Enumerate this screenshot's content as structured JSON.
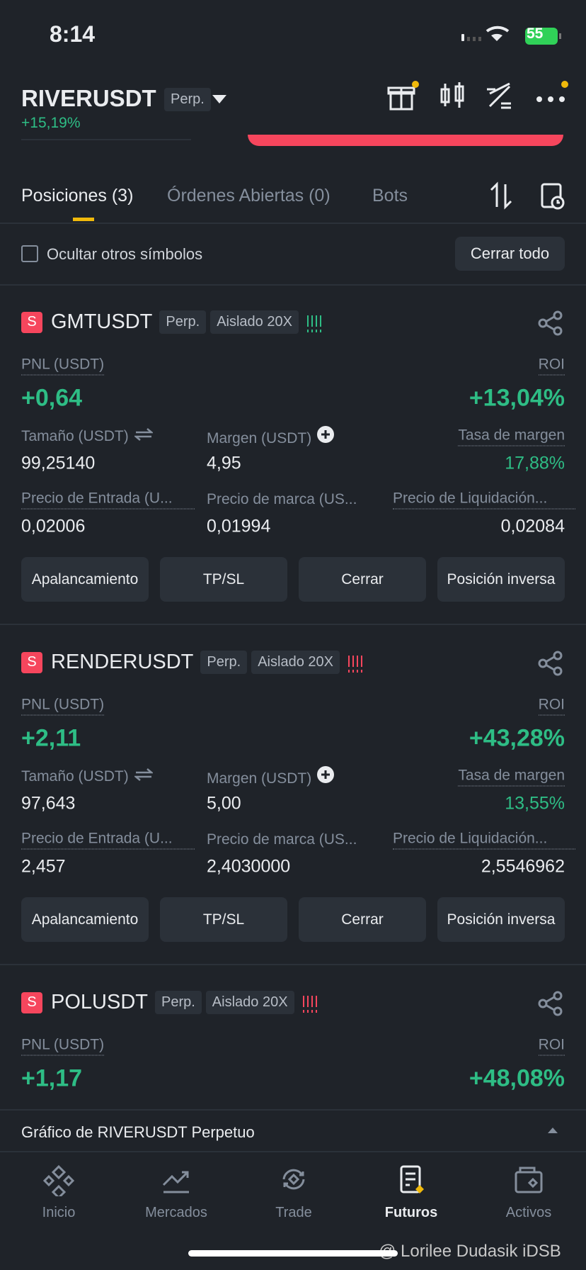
{
  "status": {
    "time": "8:14",
    "battery": "55"
  },
  "header": {
    "symbol": "RIVERUSDT",
    "badge": "Perp.",
    "change": "+15,19%"
  },
  "tabs": {
    "items": [
      "Posiciones (3)",
      "Órdenes Abiertas (0)",
      "Bots"
    ],
    "active": 0
  },
  "filter": {
    "checkbox": "Ocultar otros símbolos",
    "button": "Cerrar todo"
  },
  "position_labels": {
    "pnl": "PNL (USDT)",
    "roi": "ROI",
    "size": "Tamaño (USDT)",
    "margin": "Margen (USDT)",
    "margin_rate": "Tasa de margen",
    "entry": "Precio de Entrada (U...",
    "mark": "Precio de marca (US...",
    "liq": "Precio de Liquidación...",
    "buttons": [
      "Apalancamiento",
      "TP/SL",
      "Cerrar",
      "Posición inversa"
    ]
  },
  "positions": [
    {
      "side": "S",
      "symbol": "GMTUSDT",
      "type": "Perp.",
      "mode": "Aislado 20X",
      "adl_color": "#2ebd85",
      "pnl": "+0,64",
      "roi": "+13,04%",
      "size": "99,25140",
      "margin": "4,95",
      "margin_rate": "17,88%",
      "entry": "0,02006",
      "mark": "0,01994",
      "liq": "0,02084"
    },
    {
      "side": "S",
      "symbol": "RENDERUSDT",
      "type": "Perp.",
      "mode": "Aislado 20X",
      "adl_color": "#f6465d",
      "pnl": "+2,11",
      "roi": "+43,28%",
      "size": "97,643",
      "margin": "5,00",
      "margin_rate": "13,55%",
      "entry": "2,457",
      "mark": "2,4030000",
      "liq": "2,5546962"
    },
    {
      "side": "S",
      "symbol": "POLUSDT",
      "type": "Perp.",
      "mode": "Aislado 20X",
      "adl_color": "#f6465d",
      "pnl": "+1,17",
      "roi": "+48,08%"
    }
  ],
  "chart_bar": "Gráfico de RIVERUSDT Perpetuo",
  "nav": {
    "items": [
      "Inicio",
      "Mercados",
      "Trade",
      "Futuros",
      "Activos"
    ],
    "active": 3
  },
  "watermark": "@ Lorilee Dudasik iDSB"
}
